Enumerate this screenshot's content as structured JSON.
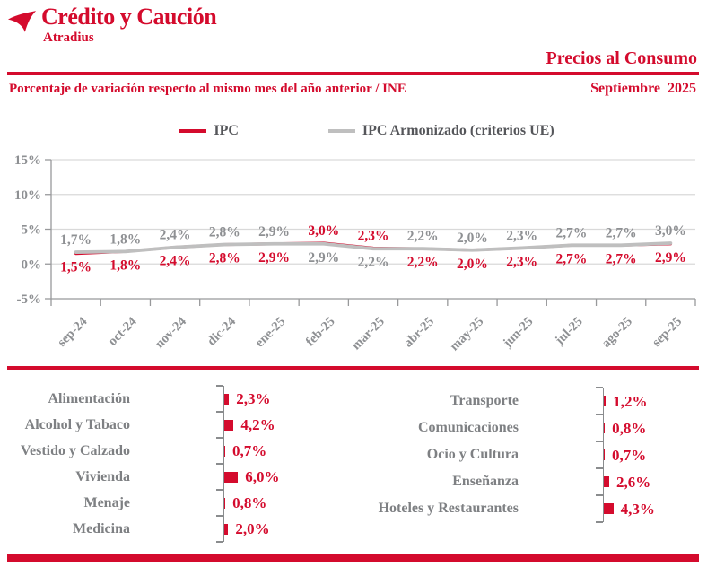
{
  "brand": {
    "name": "Crédito y Caución",
    "tagline": "Atradius"
  },
  "header": {
    "title": "Precios al Consumo",
    "subtitle": "Porcentaje de variación respecto al mismo mes del año anterior / INE",
    "period": "Septiembre  2025"
  },
  "icons": {
    "brand_mark": "tri-blade-swoosh"
  },
  "colors": {
    "red": "#d40b2d",
    "gray_series": "#bfbfbf",
    "gray_value_label": "#8e9093",
    "category_label": "#7e8083",
    "legend_text": "#55565a",
    "grid": "#d9d9d9",
    "axis": "#98999b",
    "bar_axis": "#8a8c8e"
  },
  "chart_data": [
    {
      "id": "ipc-line-chart",
      "type": "line",
      "categories": [
        "sep-24",
        "oct-24",
        "nov-24",
        "dic-24",
        "ene-25",
        "feb-25",
        "mar-25",
        "abr-25",
        "may-25",
        "jun-25",
        "jul-25",
        "ago-25",
        "sep-25"
      ],
      "series": [
        {
          "name": "IPC",
          "color_key": "red",
          "values": [
            1.5,
            1.8,
            2.4,
            2.8,
            2.9,
            3.0,
            2.3,
            2.2,
            2.0,
            2.3,
            2.7,
            2.7,
            2.9
          ],
          "labels": [
            "1,5%",
            "1,8%",
            "2,4%",
            "2,8%",
            "2,9%",
            "3,0%",
            "2,3%",
            "2,2%",
            "2,0%",
            "2,3%",
            "2,7%",
            "2,7%",
            "2,9%"
          ]
        },
        {
          "name": "IPC Armonizado (criterios UE)",
          "color_key": "gray_series",
          "values": [
            1.7,
            1.8,
            2.4,
            2.8,
            2.9,
            2.9,
            2.2,
            2.2,
            2.0,
            2.3,
            2.7,
            2.7,
            3.0
          ],
          "labels": [
            "1,7%",
            "1,8%",
            "2,4%",
            "2,8%",
            "2,9%",
            "2,9%",
            "2,2%",
            "2,2%",
            "2,0%",
            "2,3%",
            "2,7%",
            "2,7%",
            "3,0%"
          ]
        }
      ],
      "ylim": [
        -5,
        15
      ],
      "yticks": [
        15,
        10,
        5,
        0,
        -5
      ],
      "ytick_labels": [
        "15%",
        "10%",
        "5%",
        "0%",
        "-5%"
      ],
      "grid": true,
      "legend_position": "top"
    },
    {
      "id": "categories-left",
      "type": "bar",
      "orientation": "horizontal",
      "categories": [
        "Alimentación",
        "Alcohol y Tabaco",
        "Vestido y Calzado",
        "Vivienda",
        "Menaje",
        "Medicina"
      ],
      "values": [
        2.3,
        4.2,
        0.7,
        6.0,
        0.8,
        2.0
      ],
      "labels": [
        "2,3%",
        "4,2%",
        "0,7%",
        "6,0%",
        "0,8%",
        "2,0%"
      ]
    },
    {
      "id": "categories-right",
      "type": "bar",
      "orientation": "horizontal",
      "categories": [
        "Transporte",
        "Comunicaciones",
        "Ocio y Cultura",
        "Enseñanza",
        "Hoteles y Restaurantes"
      ],
      "values": [
        1.2,
        0.8,
        0.7,
        2.6,
        4.3
      ],
      "labels": [
        "1,2%",
        "0,8%",
        "0,7%",
        "2,6%",
        "4,3%"
      ]
    }
  ]
}
